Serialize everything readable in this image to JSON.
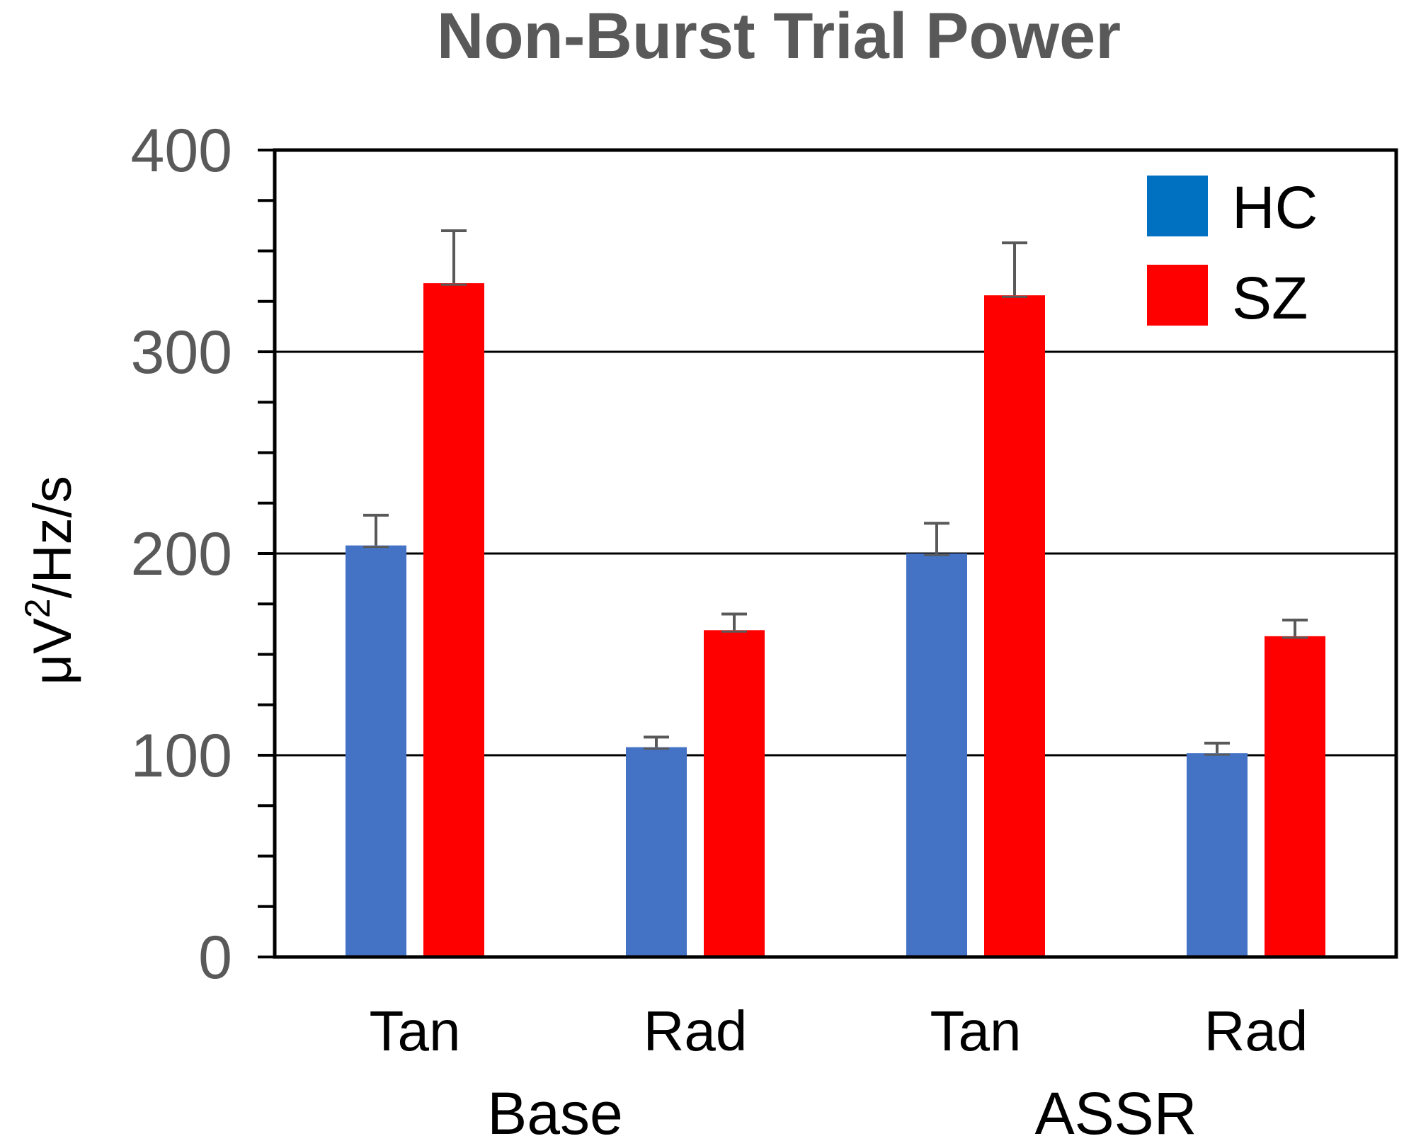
{
  "chart_data": {
    "type": "bar",
    "title": "Non-Burst Trial Power",
    "ylabel": {
      "prefix": "μV",
      "superscript": "2",
      "suffix": "/Hz/s"
    },
    "xlabel": "",
    "ylim": [
      0,
      400
    ],
    "yticks": [
      0,
      100,
      200,
      300,
      400
    ],
    "ytick_labels": [
      "0",
      "100",
      "200",
      "300",
      "400"
    ],
    "grid": true,
    "legend_position": "top-right",
    "categories": [
      "Tan",
      "Rad",
      "Tan",
      "Rad"
    ],
    "groups": [
      {
        "label": "Base",
        "categories": [
          "Tan",
          "Rad"
        ]
      },
      {
        "label": "ASSR",
        "categories": [
          "Tan",
          "Rad"
        ]
      }
    ],
    "series": [
      {
        "name": "HC",
        "color": "#4472C4",
        "legend_color": "#0070C0",
        "values": [
          204,
          104,
          200,
          101
        ],
        "errors": [
          15,
          5,
          15,
          5
        ]
      },
      {
        "name": "SZ",
        "color": "#FF0000",
        "legend_color": "#FF0000",
        "values": [
          334,
          162,
          328,
          159
        ],
        "errors": [
          26,
          8,
          26,
          8
        ]
      }
    ]
  }
}
